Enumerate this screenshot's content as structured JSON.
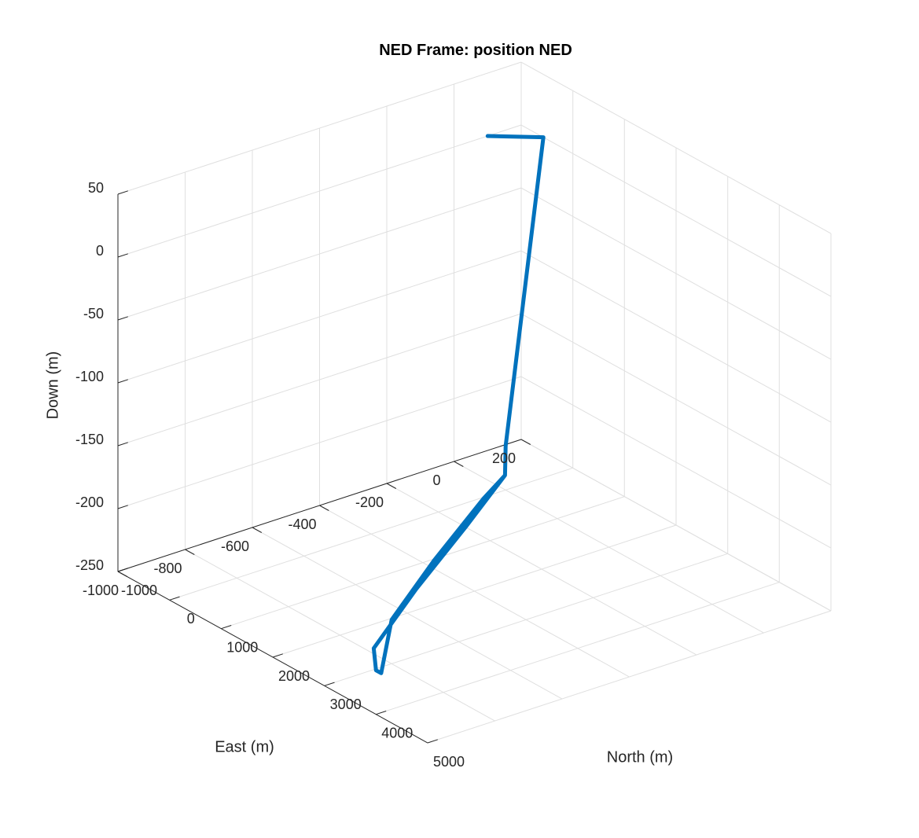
{
  "chart_data": {
    "type": "line3d",
    "title": "NED Frame: position NED",
    "xlabel": "North (m)",
    "ylabel": "East (m)",
    "zlabel": "Down (m)",
    "xlim": [
      -1000,
      5000
    ],
    "ylim": [
      -1000,
      200
    ],
    "zlim": [
      -250,
      50
    ],
    "xticks": [
      -1000,
      0,
      1000,
      2000,
      3000,
      4000,
      5000
    ],
    "yticks": [
      -1000,
      -800,
      -600,
      -400,
      -200,
      0,
      200
    ],
    "zticks": [
      -250,
      -200,
      -150,
      -100,
      -50,
      0,
      50
    ],
    "grid": true,
    "series": [
      {
        "color": "#0072BD",
        "points": [
          [
            -1000,
            100,
            0
          ],
          [
            -570,
            200,
            0
          ],
          [
            0,
            0,
            -215
          ],
          [
            640,
            -100,
            -215
          ],
          [
            1500,
            -350,
            -215
          ],
          [
            2500,
            -650,
            -215
          ],
          [
            3500,
            -930,
            -215
          ],
          [
            4000,
            -1000,
            -215
          ],
          [
            4100,
            -1000,
            -215
          ],
          [
            3000,
            -800,
            -215
          ],
          [
            2000,
            -520,
            -215
          ],
          [
            1000,
            -220,
            -215
          ],
          [
            640,
            -100,
            -215
          ]
        ]
      }
    ]
  }
}
